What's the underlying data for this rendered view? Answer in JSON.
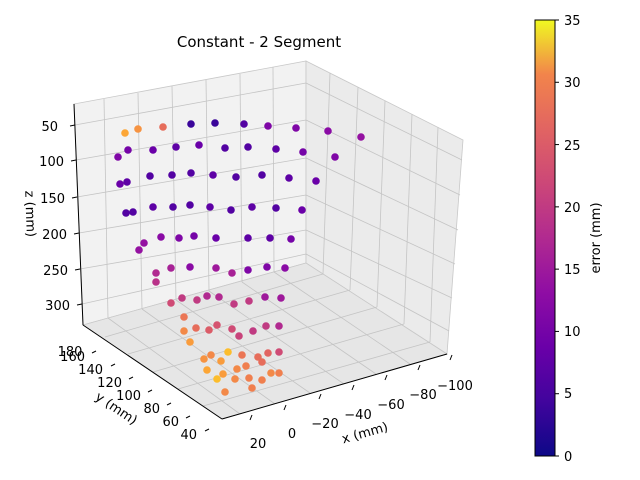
{
  "chart_data": {
    "type": "scatter",
    "title": "Constant - 2 Segment",
    "xlabel": "x (mm)",
    "ylabel": "y (mm)",
    "zlabel": "z (mm)",
    "x_ticks": [
      "20",
      "0",
      "−20",
      "−40",
      "−60",
      "−80",
      "−100"
    ],
    "y_ticks": [
      "40",
      "60",
      "80",
      "100",
      "120",
      "140",
      "160",
      "180"
    ],
    "z_ticks": [
      "50",
      "100",
      "150",
      "200",
      "250",
      "300"
    ],
    "colorbar": {
      "label": "error (mm)",
      "colormap": "plasma",
      "range": [
        0,
        35
      ],
      "ticks": [
        "0",
        "5",
        "10",
        "15",
        "20",
        "25",
        "30",
        "35"
      ]
    },
    "points": [
      {
        "u": 125,
        "v": 133,
        "e": 28
      },
      {
        "u": 138,
        "v": 129,
        "e": 26
      },
      {
        "u": 163,
        "v": 127,
        "e": 22
      },
      {
        "u": 191,
        "v": 124,
        "e": 3
      },
      {
        "u": 215,
        "v": 123,
        "e": 3
      },
      {
        "u": 244,
        "v": 124,
        "e": 5
      },
      {
        "u": 268,
        "v": 126,
        "e": 9
      },
      {
        "u": 296,
        "v": 128,
        "e": 9
      },
      {
        "u": 328,
        "v": 131,
        "e": 10
      },
      {
        "u": 361,
        "v": 137,
        "e": 11
      },
      {
        "u": 118,
        "v": 157,
        "e": 9
      },
      {
        "u": 128,
        "v": 150,
        "e": 8
      },
      {
        "u": 153,
        "v": 150,
        "e": 7
      },
      {
        "u": 176,
        "v": 147,
        "e": 6
      },
      {
        "u": 199,
        "v": 145,
        "e": 7
      },
      {
        "u": 225,
        "v": 148,
        "e": 5
      },
      {
        "u": 248,
        "v": 147,
        "e": 5
      },
      {
        "u": 276,
        "v": 149,
        "e": 6
      },
      {
        "u": 303,
        "v": 152,
        "e": 8
      },
      {
        "u": 335,
        "v": 157,
        "e": 9
      },
      {
        "u": 120,
        "v": 184,
        "e": 7
      },
      {
        "u": 127,
        "v": 182,
        "e": 6
      },
      {
        "u": 150,
        "v": 176,
        "e": 5
      },
      {
        "u": 172,
        "v": 175,
        "e": 5
      },
      {
        "u": 191,
        "v": 173,
        "e": 5
      },
      {
        "u": 213,
        "v": 175,
        "e": 6
      },
      {
        "u": 236,
        "v": 177,
        "e": 5
      },
      {
        "u": 262,
        "v": 175,
        "e": 5
      },
      {
        "u": 289,
        "v": 178,
        "e": 6
      },
      {
        "u": 316,
        "v": 181,
        "e": 7
      },
      {
        "u": 126,
        "v": 213,
        "e": 5
      },
      {
        "u": 133,
        "v": 212,
        "e": 5
      },
      {
        "u": 153,
        "v": 207,
        "e": 6
      },
      {
        "u": 173,
        "v": 207,
        "e": 5
      },
      {
        "u": 190,
        "v": 205,
        "e": 5
      },
      {
        "u": 210,
        "v": 207,
        "e": 6
      },
      {
        "u": 231,
        "v": 210,
        "e": 5
      },
      {
        "u": 252,
        "v": 207,
        "e": 6
      },
      {
        "u": 276,
        "v": 208,
        "e": 5
      },
      {
        "u": 302,
        "v": 210,
        "e": 7
      },
      {
        "u": 139,
        "v": 250,
        "e": 11
      },
      {
        "u": 144,
        "v": 243,
        "e": 11
      },
      {
        "u": 161,
        "v": 237,
        "e": 10
      },
      {
        "u": 179,
        "v": 238,
        "e": 9
      },
      {
        "u": 194,
        "v": 236,
        "e": 8
      },
      {
        "u": 216,
        "v": 238,
        "e": 7
      },
      {
        "u": 248,
        "v": 238,
        "e": 6
      },
      {
        "u": 270,
        "v": 238,
        "e": 6
      },
      {
        "u": 291,
        "v": 239,
        "e": 8
      },
      {
        "u": 156,
        "v": 273,
        "e": 14
      },
      {
        "u": 156,
        "v": 282,
        "e": 15
      },
      {
        "u": 171,
        "v": 268,
        "e": 13
      },
      {
        "u": 190,
        "v": 267,
        "e": 10
      },
      {
        "u": 216,
        "v": 268,
        "e": 12
      },
      {
        "u": 232,
        "v": 273,
        "e": 13
      },
      {
        "u": 248,
        "v": 270,
        "e": 9
      },
      {
        "u": 267,
        "v": 267,
        "e": 9
      },
      {
        "u": 285,
        "v": 268,
        "e": 10
      },
      {
        "u": 171,
        "v": 303,
        "e": 18
      },
      {
        "u": 182,
        "v": 298,
        "e": 16
      },
      {
        "u": 197,
        "v": 300,
        "e": 16
      },
      {
        "u": 207,
        "v": 296,
        "e": 14
      },
      {
        "u": 219,
        "v": 297,
        "e": 14
      },
      {
        "u": 234,
        "v": 304,
        "e": 16
      },
      {
        "u": 249,
        "v": 301,
        "e": 16
      },
      {
        "u": 265,
        "v": 297,
        "e": 12
      },
      {
        "u": 281,
        "v": 298,
        "e": 12
      },
      {
        "u": 184,
        "v": 317,
        "e": 23
      },
      {
        "u": 184,
        "v": 331,
        "e": 25
      },
      {
        "u": 196,
        "v": 328,
        "e": 22
      },
      {
        "u": 209,
        "v": 330,
        "e": 20
      },
      {
        "u": 217,
        "v": 325,
        "e": 19
      },
      {
        "u": 232,
        "v": 329,
        "e": 18
      },
      {
        "u": 239,
        "v": 336,
        "e": 17
      },
      {
        "u": 253,
        "v": 331,
        "e": 16
      },
      {
        "u": 266,
        "v": 326,
        "e": 16
      },
      {
        "u": 279,
        "v": 326,
        "e": 14
      },
      {
        "u": 190,
        "v": 342,
        "e": 27
      },
      {
        "u": 211,
        "v": 355,
        "e": 25
      },
      {
        "u": 228,
        "v": 352,
        "e": 30
      },
      {
        "u": 242,
        "v": 355,
        "e": 23
      },
      {
        "u": 258,
        "v": 357,
        "e": 22
      },
      {
        "u": 268,
        "v": 353,
        "e": 21
      },
      {
        "u": 279,
        "v": 352,
        "e": 18
      },
      {
        "u": 204,
        "v": 359,
        "e": 26
      },
      {
        "u": 221,
        "v": 361,
        "e": 27
      },
      {
        "u": 237,
        "v": 369,
        "e": 25
      },
      {
        "u": 246,
        "v": 366,
        "e": 24
      },
      {
        "u": 262,
        "v": 362,
        "e": 22
      },
      {
        "u": 207,
        "v": 370,
        "e": 28
      },
      {
        "u": 223,
        "v": 374,
        "e": 27
      },
      {
        "u": 235,
        "v": 379,
        "e": 25
      },
      {
        "u": 249,
        "v": 378,
        "e": 24
      },
      {
        "u": 262,
        "v": 380,
        "e": 24
      },
      {
        "u": 271,
        "v": 373,
        "e": 25
      },
      {
        "u": 279,
        "v": 373,
        "e": 24
      },
      {
        "u": 217,
        "v": 379,
        "e": 30
      },
      {
        "u": 225,
        "v": 392,
        "e": 25
      },
      {
        "u": 252,
        "v": 388,
        "e": 24
      }
    ]
  }
}
